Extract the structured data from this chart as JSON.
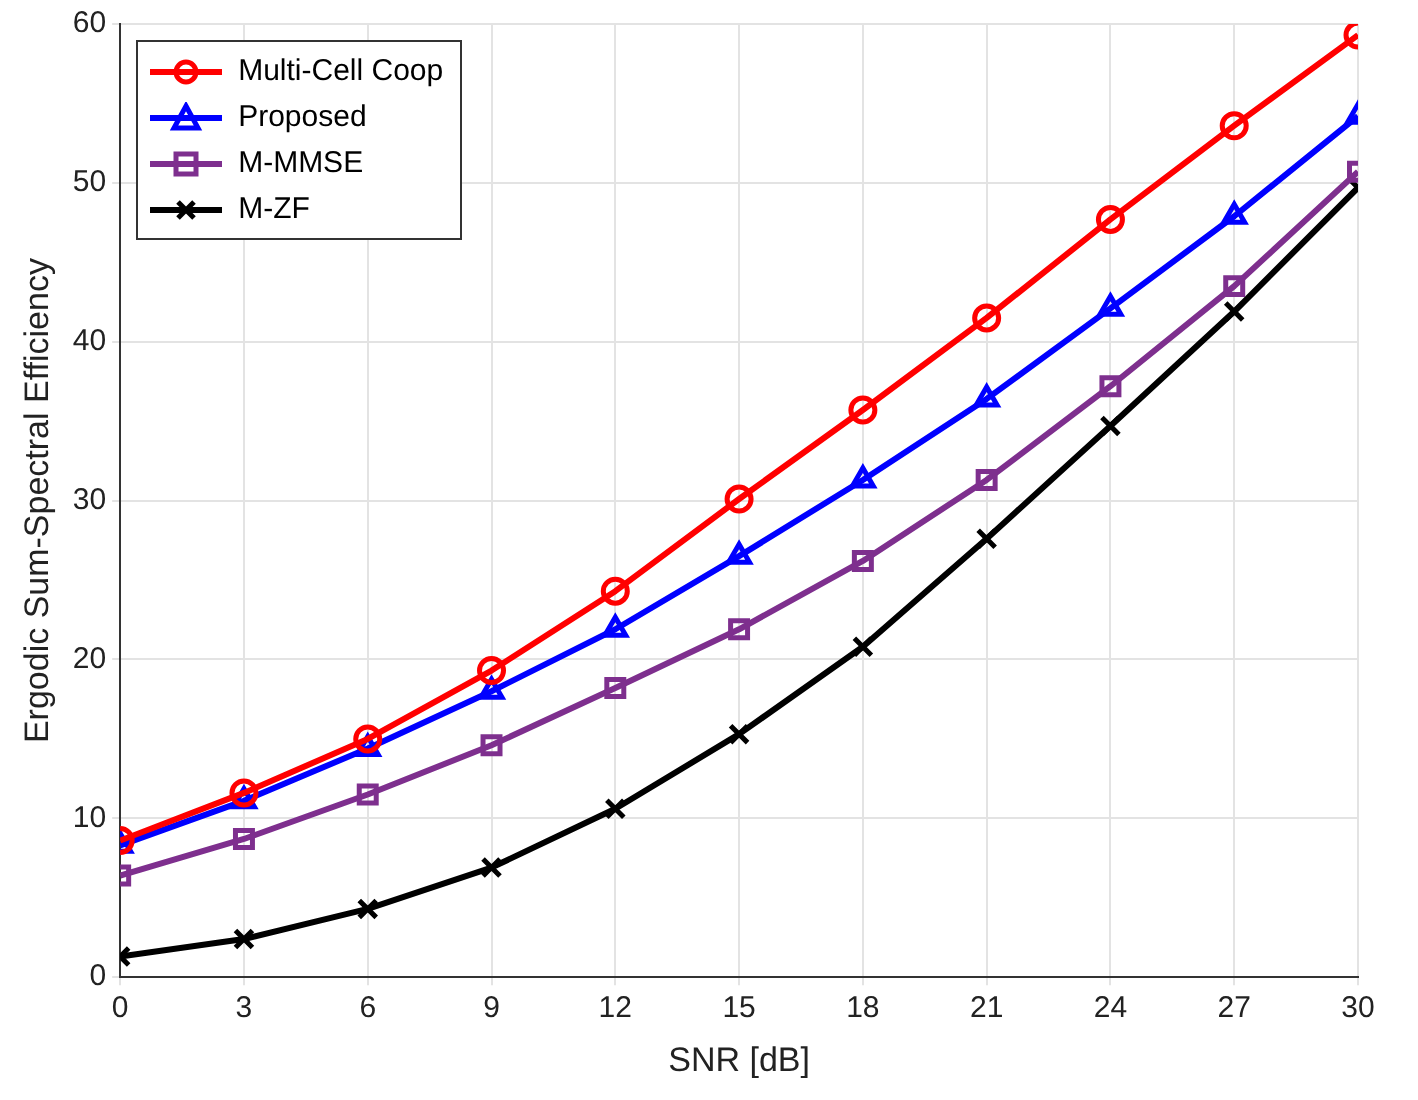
{
  "chart_data": {
    "type": "line",
    "xlabel": "SNR [dB]",
    "ylabel": "Ergodic Sum-Spectral Efficiency",
    "x": [
      0,
      3,
      6,
      9,
      12,
      15,
      18,
      21,
      24,
      27,
      30
    ],
    "xlim": [
      0,
      30
    ],
    "xticks": [
      0,
      3,
      6,
      9,
      12,
      15,
      18,
      21,
      24,
      27,
      30
    ],
    "ylim": [
      0,
      60
    ],
    "yticks": [
      0,
      10,
      20,
      30,
      40,
      50,
      60
    ],
    "grid": true,
    "legend": "top left",
    "line_style": "solid",
    "series": [
      {
        "name": "Multi-Cell Coop",
        "color": "#ff0000",
        "marker": "circle",
        "values": [
          8.6,
          11.6,
          15.0,
          19.3,
          24.3,
          30.1,
          35.7,
          41.5,
          47.7,
          53.6,
          59.3
        ]
      },
      {
        "name": "Proposed",
        "color": "#0000ff",
        "marker": "triangle",
        "values": [
          8.3,
          11.1,
          14.4,
          18.0,
          21.9,
          26.5,
          31.3,
          36.4,
          42.1,
          47.9,
          54.2
        ]
      },
      {
        "name": "M-MMSE",
        "color": "#7e2f8e",
        "marker": "square",
        "values": [
          6.4,
          8.7,
          11.5,
          14.6,
          18.2,
          21.9,
          26.2,
          31.3,
          37.2,
          43.5,
          50.7
        ]
      },
      {
        "name": "M-ZF",
        "color": "#000000",
        "marker": "cross",
        "values": [
          1.3,
          2.4,
          4.3,
          6.9,
          10.6,
          15.3,
          20.8,
          27.6,
          34.7,
          41.9,
          49.7
        ]
      }
    ]
  }
}
